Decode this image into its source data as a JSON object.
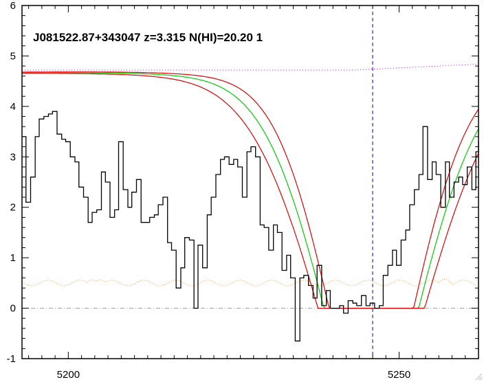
{
  "chart_data": {
    "type": "line",
    "title": "J081522.87+343047 z=3.315 N(HI)=20.20 1",
    "xlabel": "",
    "ylabel": "",
    "xlim": [
      5193,
      5262
    ],
    "ylim": [
      -1,
      6
    ],
    "x_ticks": [
      5200,
      5250
    ],
    "x_tick_labels": [
      "5200",
      "5250"
    ],
    "y_ticks": [
      -1,
      0,
      1,
      2,
      3,
      4,
      5,
      6
    ],
    "y_tick_labels": [
      "-1",
      "0",
      "1",
      "2",
      "3",
      "4",
      "5",
      "6"
    ],
    "grid": false,
    "legend": "none",
    "reference_line_x": 5246.0,
    "reference_line_y": 0,
    "colors": {
      "flux": "#000000",
      "fit": "#00cc00",
      "fit_bounds": "#dd0000",
      "continuum": "#a020f0",
      "error": "#ff9933",
      "center_line": "#0000cc",
      "zero_line": "#999999"
    },
    "series": [
      {
        "style": "step",
        "x": [
          5193.0,
          5193.6,
          5194.3,
          5195.0,
          5195.6,
          5196.3,
          5197.0,
          5197.6,
          5198.3,
          5199.0,
          5199.6,
          5200.3,
          5201.0,
          5201.6,
          5202.3,
          5203.0,
          5203.6,
          5204.3,
          5205.0,
          5205.6,
          5206.3,
          5207.0,
          5207.6,
          5208.3,
          5209.0,
          5209.6,
          5210.3,
          5211.0,
          5211.6,
          5212.3,
          5213.0,
          5213.6,
          5214.3,
          5215.0,
          5215.6,
          5216.3,
          5217.0,
          5217.6,
          5218.3,
          5219.0,
          5219.6,
          5220.3,
          5221.0,
          5221.6,
          5222.3,
          5223.0,
          5223.6,
          5224.3,
          5225.0,
          5225.6,
          5226.3,
          5227.0,
          5227.6,
          5228.3,
          5229.0,
          5229.6,
          5230.3,
          5231.0,
          5231.6,
          5232.3,
          5233.0,
          5233.6,
          5234.3,
          5235.0,
          5235.6,
          5236.3,
          5237.0,
          5237.6,
          5238.3,
          5239.0,
          5239.6,
          5240.3,
          5241.0,
          5241.6,
          5242.3,
          5243.0,
          5243.6,
          5244.3,
          5245.0,
          5245.6,
          5246.3,
          5247.0,
          5247.6,
          5248.3,
          5249.0,
          5249.6,
          5250.3,
          5251.0,
          5251.6,
          5252.3,
          5253.0,
          5253.6,
          5254.3,
          5255.0,
          5255.6,
          5256.3,
          5257.0,
          5257.6,
          5258.3,
          5259.0,
          5259.6,
          5260.3,
          5261.0,
          5261.6,
          5262.0
        ],
        "y": [
          3.4,
          2.1,
          2.6,
          3.4,
          3.75,
          3.8,
          3.85,
          3.9,
          3.45,
          3.35,
          3.3,
          3.0,
          2.9,
          2.4,
          2.2,
          1.7,
          1.9,
          1.95,
          2.7,
          2.5,
          1.8,
          1.95,
          3.3,
          2.35,
          2.0,
          2.3,
          2.55,
          1.7,
          1.7,
          1.8,
          1.85,
          2.05,
          2.2,
          1.3,
          1.15,
          0.4,
          0.8,
          1.4,
          1.35,
          0.0,
          1.25,
          0.8,
          1.85,
          2.2,
          2.65,
          2.95,
          3.0,
          2.85,
          2.95,
          2.8,
          2.2,
          3.1,
          3.2,
          3.0,
          1.65,
          1.6,
          1.15,
          1.65,
          1.5,
          0.75,
          1.05,
          0.6,
          -0.65,
          0.6,
          0.65,
          0.45,
          0.2,
          0.85,
          0.05,
          0.35,
          0.0,
          0.0,
          0.05,
          -0.1,
          0.15,
          0.1,
          0.05,
          0.25,
          0.05,
          0.1,
          0.0,
          0.05,
          0.65,
          0.85,
          1.15,
          0.85,
          1.35,
          1.55,
          2.05,
          2.35,
          2.65,
          3.6,
          2.55,
          2.9,
          2.65,
          2.0,
          2.9,
          2.2,
          2.5,
          2.6,
          2.45,
          2.8,
          2.35,
          3.1,
          3.3
        ]
      }
    ]
  }
}
